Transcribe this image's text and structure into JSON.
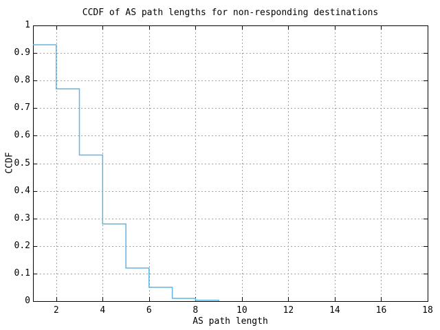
{
  "figure": {
    "title": "CCDF of AS path lengths for non-responding destinations"
  },
  "colors": {
    "line": "#5CB6E6",
    "grid": "#A0A0A0",
    "axis": "#000000",
    "background": "#FFFFFF",
    "text": "#000000"
  },
  "chart_data": {
    "type": "line",
    "subtype": "step-post",
    "title": "CCDF of AS path lengths for non-responding destinations",
    "xlabel": "AS path length",
    "ylabel": "CCDF",
    "xlim": [
      1,
      18
    ],
    "ylim": [
      0,
      1
    ],
    "xticks": [
      2,
      4,
      6,
      8,
      10,
      12,
      14,
      16,
      18
    ],
    "xtick_labels": [
      "2",
      "4",
      "6",
      "8",
      "10",
      "12",
      "14",
      "16",
      "18"
    ],
    "yticks": [
      0,
      0.1,
      0.2,
      0.3,
      0.4,
      0.5,
      0.6,
      0.7,
      0.8,
      0.9,
      1
    ],
    "ytick_labels": [
      "0",
      "0.1",
      "0.2",
      "0.3",
      "0.4",
      "0.5",
      "0.6",
      "0.7",
      "0.8",
      "0.9",
      "1"
    ],
    "grid": true,
    "legend": "none",
    "x": [
      1,
      2,
      3,
      4,
      5,
      6,
      7,
      8,
      9
    ],
    "y": [
      0.93,
      0.77,
      0.53,
      0.28,
      0.12,
      0.05,
      0.01,
      0.003,
      0
    ],
    "line_color": "#5CB6E6"
  }
}
